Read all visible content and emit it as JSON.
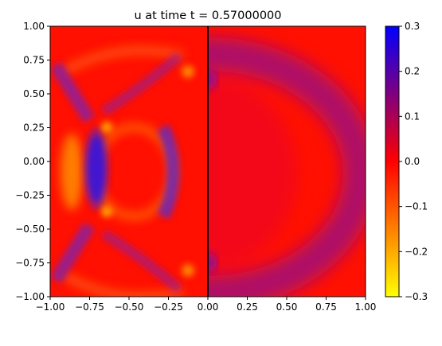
{
  "chart_data": {
    "type": "heatmap",
    "title": "u at time t =      0.57000000",
    "xlabel": "",
    "ylabel": "",
    "xlim": [
      -1.0,
      1.0
    ],
    "ylim": [
      -1.0,
      1.0
    ],
    "x_ticks": [
      "−1.00",
      "−0.75",
      "−0.50",
      "−0.25",
      "0.00",
      "0.25",
      "0.50",
      "0.75",
      "1.00"
    ],
    "y_ticks": [
      "−1.00",
      "−0.75",
      "−0.50",
      "−0.25",
      "0.00",
      "0.25",
      "0.50",
      "0.75",
      "1.00"
    ],
    "colorbar": {
      "range": [
        -0.3,
        0.3
      ],
      "ticks": [
        "−0.3",
        "−0.2",
        "−0.1",
        "0.0",
        "0.1",
        "0.2",
        "0.3"
      ],
      "colors": [
        "#ffff00",
        "#ff0000",
        "#0000ff"
      ]
    },
    "interface_line_x": 0.0,
    "grid": false
  }
}
